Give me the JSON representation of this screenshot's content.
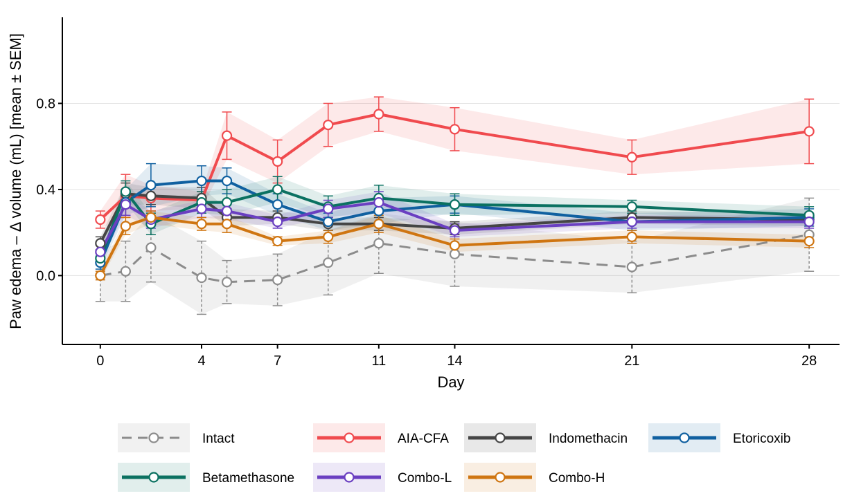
{
  "chart_data": {
    "type": "line",
    "title": "",
    "xlabel": "Day",
    "ylabel": "Paw edema – Δ volume (mL) [mean ± SEM]",
    "xlim": [
      -1.5,
      29.2
    ],
    "ylim": [
      -0.32,
      1.2
    ],
    "x_ticks": [
      0,
      4,
      7,
      11,
      14,
      21,
      28
    ],
    "x_tick_labels": [
      "0",
      "4",
      "7",
      "11",
      "14",
      "21",
      "28"
    ],
    "y_ticks": [
      0.0,
      0.4,
      0.8
    ],
    "y_tick_labels": [
      "0.0",
      "0.4",
      "0.8"
    ],
    "grid": "horizontal major lines only",
    "legend": "bottom",
    "x": [
      0,
      1,
      2,
      4,
      5,
      7,
      9,
      11,
      14,
      21,
      28
    ],
    "series": [
      {
        "name": "Intact",
        "color": "#8c8c8c",
        "style": "dashed",
        "values": [
          0.0,
          0.02,
          0.13,
          -0.01,
          -0.03,
          -0.02,
          0.06,
          0.15,
          0.1,
          0.04,
          0.19
        ],
        "sem": [
          0.12,
          0.14,
          0.16,
          0.17,
          0.1,
          0.12,
          0.15,
          0.14,
          0.15,
          0.12,
          0.17
        ]
      },
      {
        "name": "AIA-CFA",
        "color": "#f04a4e",
        "style": "solid",
        "values": [
          0.26,
          0.37,
          0.36,
          0.35,
          0.65,
          0.53,
          0.7,
          0.75,
          0.68,
          0.55,
          0.67
        ],
        "sem": [
          0.04,
          0.1,
          0.06,
          0.04,
          0.11,
          0.1,
          0.1,
          0.08,
          0.1,
          0.08,
          0.15
        ]
      },
      {
        "name": "Indomethacin",
        "color": "#454545",
        "style": "solid",
        "values": [
          0.15,
          0.38,
          0.37,
          0.36,
          0.27,
          0.27,
          0.24,
          0.24,
          0.22,
          0.27,
          0.26
        ],
        "sem": [
          0.03,
          0.05,
          0.04,
          0.05,
          0.04,
          0.03,
          0.03,
          0.03,
          0.03,
          0.03,
          0.03
        ]
      },
      {
        "name": "Etoricoxib",
        "color": "#1060a0",
        "style": "solid",
        "values": [
          0.06,
          0.34,
          0.42,
          0.44,
          0.44,
          0.33,
          0.25,
          0.3,
          0.33,
          0.25,
          0.27
        ],
        "sem": [
          0.03,
          0.06,
          0.1,
          0.07,
          0.06,
          0.05,
          0.04,
          0.06,
          0.04,
          0.04,
          0.04
        ]
      },
      {
        "name": "Betamethasone",
        "color": "#0b7161",
        "style": "solid",
        "values": [
          0.08,
          0.39,
          0.24,
          0.34,
          0.34,
          0.4,
          0.32,
          0.36,
          0.33,
          0.32,
          0.28
        ],
        "sem": [
          0.03,
          0.05,
          0.05,
          0.05,
          0.06,
          0.06,
          0.05,
          0.06,
          0.05,
          0.03,
          0.04
        ]
      },
      {
        "name": "Combo-L",
        "color": "#6a3fc1",
        "style": "solid",
        "values": [
          0.11,
          0.33,
          0.26,
          0.31,
          0.3,
          0.25,
          0.31,
          0.34,
          0.21,
          0.25,
          0.25
        ],
        "sem": [
          0.03,
          0.05,
          0.04,
          0.04,
          0.04,
          0.03,
          0.04,
          0.05,
          0.03,
          0.03,
          0.03
        ]
      },
      {
        "name": "Combo-H",
        "color": "#cf7511",
        "style": "solid",
        "values": [
          0.0,
          0.23,
          0.27,
          0.24,
          0.24,
          0.16,
          0.18,
          0.24,
          0.14,
          0.18,
          0.16
        ],
        "sem": [
          0.02,
          0.04,
          0.03,
          0.03,
          0.04,
          0.02,
          0.03,
          0.04,
          0.03,
          0.03,
          0.03
        ]
      }
    ]
  }
}
